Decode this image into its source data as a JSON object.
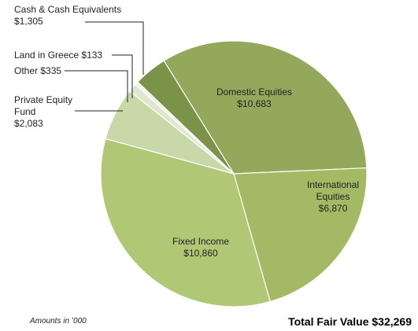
{
  "chart_data": {
    "type": "pie",
    "categories": [
      "Domestic Equities",
      "International Equities",
      "Fixed Income",
      "Private Equity Fund",
      "Other",
      "Land in Greece",
      "Cash & Cash Equivalents"
    ],
    "values": [
      10683,
      6870,
      10860,
      2083,
      335,
      133,
      1305
    ],
    "value_labels": [
      "$10,683",
      "$6,870",
      "$10,860",
      "$2,083",
      "$335",
      "$133",
      "$1,305"
    ],
    "colors": [
      "#93a85b",
      "#a4b964",
      "#b0c776",
      "#c8d8a8",
      "#dfe7cc",
      "#eef2e2",
      "#7b9249"
    ],
    "annotations": [
      "Amounts in ’000",
      "Total Fair Value $32,269"
    ]
  }
}
